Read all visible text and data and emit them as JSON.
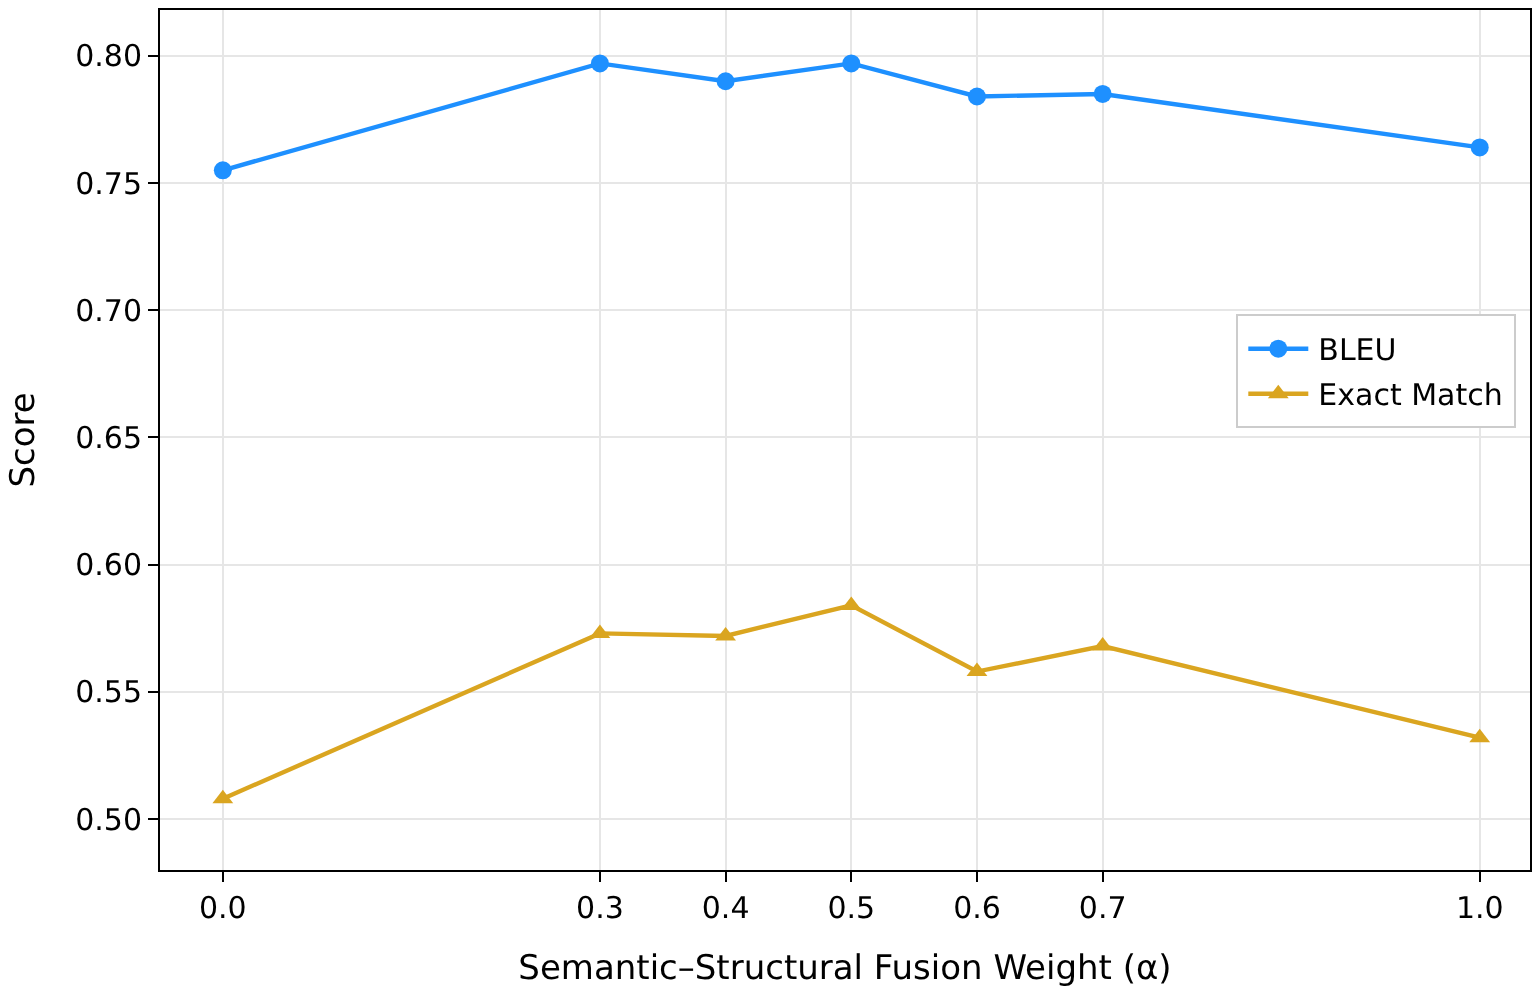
{
  "chart_data": {
    "type": "line",
    "xlabel": "Semantic–Structural Fusion Weight (α)",
    "ylabel": "Score",
    "x": [
      0.0,
      0.3,
      0.4,
      0.5,
      0.6,
      0.7,
      1.0
    ],
    "series": [
      {
        "name": "BLEU",
        "color": "#1e90ff",
        "marker": "circle",
        "values": [
          0.755,
          0.797,
          0.79,
          0.797,
          0.784,
          0.785,
          0.764
        ]
      },
      {
        "name": "Exact Match",
        "color": "#daa520",
        "marker": "triangle",
        "values": [
          0.508,
          0.573,
          0.572,
          0.584,
          0.558,
          0.568,
          0.532
        ]
      }
    ],
    "xlim": [
      -0.05,
      1.04
    ],
    "ylim": [
      0.48,
      0.818
    ],
    "xticks": [
      {
        "value": 0.0,
        "label": "0.0"
      },
      0.3,
      0.4,
      0.5,
      0.6,
      0.7,
      {
        "value": 1.0,
        "label": "1.0"
      }
    ],
    "yticks": [
      {
        "value": 0.5,
        "label": "0.50"
      },
      0.55,
      {
        "value": 0.6,
        "label": "0.60"
      },
      0.65,
      {
        "value": 0.7,
        "label": "0.70"
      },
      0.75,
      {
        "value": 0.8,
        "label": "0.80"
      }
    ],
    "grid": true,
    "legend": "right",
    "line_style": "solid"
  }
}
